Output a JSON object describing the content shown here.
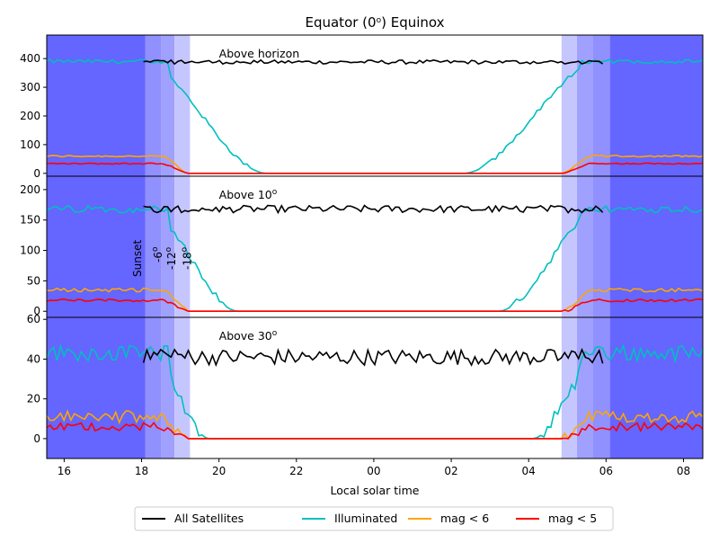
{
  "chart_data": {
    "type": "line",
    "title": "Equator (0",
    "title_sup": "o",
    "title_tail": ") Equinox",
    "xlabel": "Local solar time",
    "x_ticks": [
      {
        "x": 16,
        "label": "16"
      },
      {
        "x": 18,
        "label": "18"
      },
      {
        "x": 20,
        "label": "20"
      },
      {
        "x": 22,
        "label": "22"
      },
      {
        "x": 24,
        "label": "00"
      },
      {
        "x": 26,
        "label": "02"
      },
      {
        "x": 28,
        "label": "04"
      },
      {
        "x": 30,
        "label": "06"
      },
      {
        "x": 32,
        "label": "08"
      }
    ],
    "xlim": [
      15.55,
      32.5
    ],
    "legend": {
      "placement": "bottom-center",
      "entries": [
        {
          "name": "All Satellites",
          "color": "#000000"
        },
        {
          "name": "Illuminated",
          "color": "#00bfbf"
        },
        {
          "name": "mag < 6",
          "color": "#ffa500"
        },
        {
          "name": "mag < 5",
          "color": "#ff0000"
        }
      ]
    },
    "twilight": {
      "evening": [
        18.1,
        18.5,
        18.85,
        19.25
      ],
      "morning": [
        30.1,
        29.65,
        29.25,
        28.85
      ],
      "labels": [
        "Sunset",
        "-6",
        "-12",
        "-18"
      ],
      "label_sup": "o",
      "shade_colors": [
        "#6565ff",
        "#a0a0ff",
        "#c6c6ff"
      ]
    },
    "panels": [
      {
        "label": "Above horizon",
        "label_sup": "",
        "ylim": [
          -10,
          482
        ],
        "y_ticks": [
          0,
          100,
          200,
          300,
          400
        ],
        "all": 388,
        "all_noise": 7,
        "ill_max": 390,
        "mag6": 60,
        "mag5": 34,
        "noise": 3
      },
      {
        "label": "Above 10",
        "label_sup": "o",
        "ylim": [
          -10,
          222
        ],
        "y_ticks": [
          0,
          50,
          100,
          150,
          200
        ],
        "all": 168,
        "all_noise": 6,
        "ill_max": 168,
        "mag6": 35,
        "mag5": 18,
        "noise": 3
      },
      {
        "label": "Above 30",
        "label_sup": "o",
        "ylim": [
          -10,
          61
        ],
        "y_ticks": [
          0,
          20,
          40,
          60
        ],
        "all": 41,
        "all_noise": 4,
        "ill_max": 43,
        "mag6": 11,
        "mag5": 6,
        "noise": 3
      }
    ]
  }
}
